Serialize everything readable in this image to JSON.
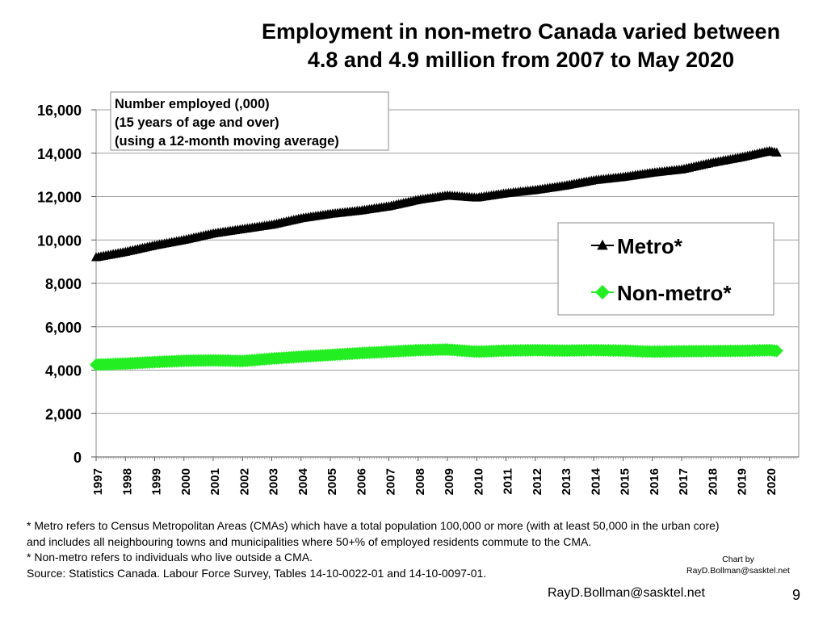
{
  "title_lines": [
    "Employment in non-metro Canada varied between",
    "4.8 and 4.9 million from 2007 to May 2020"
  ],
  "chart_data": {
    "type": "line",
    "ylabel_box": [
      "Number employed (,000)",
      "(15 years of age and over)",
      "(using a 12-month moving average)"
    ],
    "x_ticks": [
      "1997",
      "1998",
      "1999",
      "2000",
      "2001",
      "2002",
      "2003",
      "2004",
      "2005",
      "2006",
      "2007",
      "2008",
      "2009",
      "2010",
      "2011",
      "2012",
      "2013",
      "2014",
      "2015",
      "2016",
      "2017",
      "2018",
      "2019",
      "2020"
    ],
    "y_ticks": [
      "0",
      "2,000",
      "4,000",
      "6,000",
      "8,000",
      "10,000",
      "12,000",
      "14,000",
      "16,000"
    ],
    "ylim": [
      0,
      16000
    ],
    "xlim": [
      1997,
      2021
    ],
    "grid": true,
    "legend_position": "right",
    "series": [
      {
        "name": "Metro*",
        "color": "#000000",
        "marker": "triangle",
        "x": [
          1997,
          1998,
          1999,
          2000,
          2001,
          2002,
          2003,
          2004,
          2005,
          2006,
          2007,
          2008,
          2009,
          2010,
          2011,
          2012,
          2013,
          2014,
          2015,
          2016,
          2017,
          2018,
          2019,
          2020,
          2020.33
        ],
        "values": [
          9200,
          9450,
          9750,
          10000,
          10300,
          10500,
          10700,
          11000,
          11200,
          11350,
          11550,
          11850,
          12050,
          11950,
          12150,
          12300,
          12500,
          12750,
          12900,
          13100,
          13250,
          13550,
          13800,
          14100,
          14000
        ]
      },
      {
        "name": "Non-metro*",
        "color": "#22ee22",
        "marker": "diamond",
        "x": [
          1997,
          1998,
          1999,
          2000,
          2001,
          2002,
          2003,
          2004,
          2005,
          2006,
          2007,
          2008,
          2009,
          2010,
          2011,
          2012,
          2013,
          2014,
          2015,
          2016,
          2017,
          2018,
          2019,
          2020,
          2020.33
        ],
        "values": [
          4250,
          4300,
          4370,
          4430,
          4450,
          4420,
          4530,
          4620,
          4700,
          4780,
          4850,
          4920,
          4950,
          4850,
          4900,
          4920,
          4900,
          4920,
          4900,
          4850,
          4870,
          4880,
          4890,
          4920,
          4880
        ]
      }
    ]
  },
  "footnotes": [
    "* Metro refers to Census Metropolitan Areas (CMAs) which have a total population 100,000 or more (with at least 50,000 in the urban core)",
    "and includes all neighbouring towns and municipalities where 50+% of employed residents commute to the CMA.",
    "* Non-metro refers to individuals who live outside a CMA.",
    "Source: Statistics Canada. Labour Force Survey, Tables 14-10-0022-01 and 14-10-0097-01."
  ],
  "credit_lines": [
    "Chart by",
    "RayD.Bollman@sasktel.net"
  ],
  "email": "RayD.Bollman@sasktel.net",
  "page_number": "9"
}
